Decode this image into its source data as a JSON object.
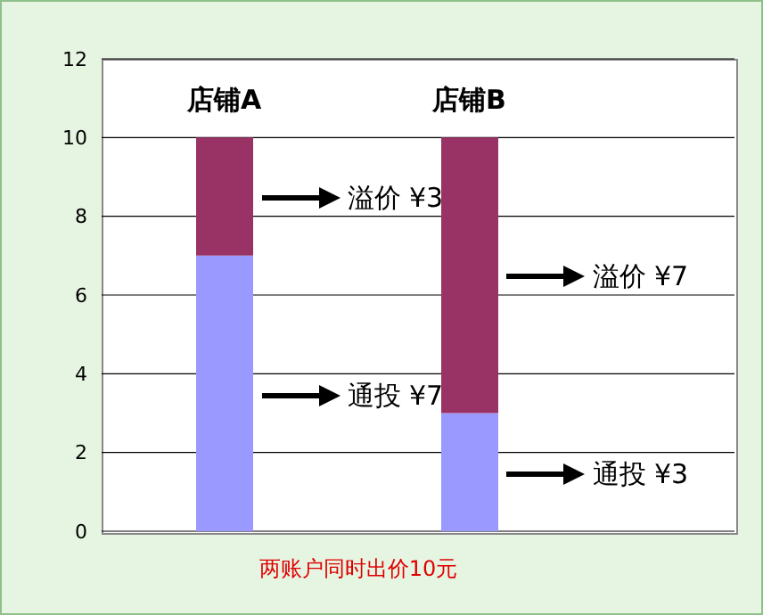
{
  "chart_data": {
    "type": "bar",
    "stacked": true,
    "categories": [
      "店铺A",
      "店铺B"
    ],
    "series": [
      {
        "color": "#9999ff",
        "values": [
          7,
          3
        ]
      },
      {
        "color": "#993366",
        "values": [
          3,
          7
        ]
      }
    ],
    "ylim": [
      0,
      12
    ],
    "yticks": [
      0,
      2,
      4,
      6,
      8,
      10,
      12
    ],
    "grid": "y",
    "legend": false,
    "annotations": [
      "溢价 ¥3",
      "通投 ¥7",
      "溢价 ¥7",
      "通投 ¥3",
      "两账户同时出价10元"
    ]
  }
}
